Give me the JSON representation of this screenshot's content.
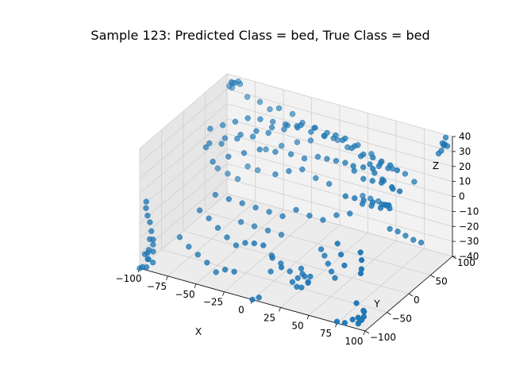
{
  "chart_data": {
    "type": "scatter",
    "projection": "3d",
    "title": "Sample 123: Predicted Class = bed, True Class = bed",
    "xlabel": "X",
    "ylabel": "Y",
    "zlabel": "Z",
    "xlim": [
      -100,
      100
    ],
    "ylim": [
      -100,
      100
    ],
    "zlim": [
      -40,
      40
    ],
    "xticks": [
      "−100",
      "−75",
      "−50",
      "−25",
      "0",
      "25",
      "50",
      "75",
      "100"
    ],
    "xtick_values": [
      -100,
      -75,
      -50,
      -25,
      0,
      25,
      50,
      75,
      100
    ],
    "yticks": [
      "−100",
      "−50",
      "0",
      "50",
      "100"
    ],
    "ytick_values": [
      -100,
      -50,
      0,
      50,
      100
    ],
    "zticks": [
      "−40",
      "−30",
      "−20",
      "−10",
      "0",
      "10",
      "20",
      "30",
      "40"
    ],
    "ztick_values": [
      -40,
      -30,
      -20,
      -10,
      0,
      10,
      20,
      30,
      40
    ],
    "grid": true,
    "color": "#1f77b4",
    "series": [
      {
        "points": [
          [
            -95,
            100,
            35
          ],
          [
            -92,
            98,
            36
          ],
          [
            -94,
            96,
            33
          ],
          [
            -90,
            100,
            37
          ],
          [
            -96,
            95,
            34
          ],
          [
            -88,
            99,
            36
          ],
          [
            -93,
            92,
            38
          ],
          [
            -80,
            95,
            30
          ],
          [
            -70,
            98,
            28
          ],
          [
            -60,
            95,
            26
          ],
          [
            -50,
            90,
            30
          ],
          [
            -40,
            95,
            27
          ],
          [
            -30,
            92,
            24
          ],
          [
            -20,
            95,
            22
          ],
          [
            -10,
            90,
            20
          ],
          [
            0,
            95,
            18
          ],
          [
            10,
            92,
            16
          ],
          [
            20,
            90,
            20
          ],
          [
            30,
            95,
            15
          ],
          [
            40,
            90,
            12
          ],
          [
            50,
            92,
            10
          ],
          [
            60,
            95,
            8
          ],
          [
            70,
            90,
            6
          ],
          [
            -95,
            -95,
            -30
          ],
          [
            -93,
            -98,
            -33
          ],
          [
            -96,
            -92,
            -35
          ],
          [
            -90,
            -95,
            -28
          ],
          [
            -94,
            -100,
            -38
          ],
          [
            -92,
            -90,
            -25
          ],
          [
            -97,
            -96,
            -31
          ],
          [
            -91,
            -93,
            -36
          ],
          [
            -95,
            -90,
            -22
          ],
          [
            -93,
            -97,
            -27
          ],
          [
            -95,
            -95,
            -5
          ],
          [
            -94,
            -92,
            -10
          ],
          [
            -96,
            -96,
            0
          ],
          [
            -92,
            -94,
            -15
          ],
          [
            -95,
            -98,
            5
          ],
          [
            -90,
            -95,
            -20
          ],
          [
            95,
            -95,
            -35
          ],
          [
            93,
            -98,
            -33
          ],
          [
            96,
            -92,
            -30
          ],
          [
            92,
            -95,
            -38
          ],
          [
            94,
            -100,
            -36
          ],
          [
            90,
            -94,
            -25
          ],
          [
            97,
            -96,
            -28
          ],
          [
            95,
            -90,
            -34
          ],
          [
            95,
            95,
            35
          ],
          [
            93,
            98,
            33
          ],
          [
            96,
            92,
            36
          ],
          [
            92,
            95,
            30
          ],
          [
            94,
            100,
            38
          ],
          [
            90,
            94,
            28
          ],
          [
            97,
            96,
            34
          ],
          [
            95,
            90,
            37
          ],
          [
            95,
            -95,
            5
          ],
          [
            93,
            -92,
            -5
          ],
          [
            96,
            -98,
            0
          ],
          [
            94,
            -95,
            10
          ],
          [
            -100,
            -100,
            -40
          ],
          [
            -98,
            -99,
            -39
          ],
          [
            85,
            -90,
            -38
          ],
          [
            80,
            -95,
            -40
          ],
          [
            75,
            -100,
            -39
          ],
          [
            -80,
            0,
            20
          ],
          [
            -70,
            10,
            22
          ],
          [
            -60,
            20,
            25
          ],
          [
            -50,
            30,
            26
          ],
          [
            -40,
            40,
            28
          ],
          [
            -30,
            50,
            30
          ],
          [
            -20,
            55,
            32
          ],
          [
            -10,
            60,
            30
          ],
          [
            0,
            65,
            28
          ],
          [
            10,
            60,
            30
          ],
          [
            20,
            55,
            32
          ],
          [
            30,
            50,
            30
          ],
          [
            40,
            45,
            28
          ],
          [
            50,
            40,
            26
          ],
          [
            60,
            35,
            28
          ],
          [
            70,
            30,
            30
          ],
          [
            80,
            25,
            32
          ],
          [
            -75,
            -5,
            25
          ],
          [
            -65,
            5,
            28
          ],
          [
            -55,
            15,
            30
          ],
          [
            -45,
            25,
            32
          ],
          [
            -35,
            35,
            34
          ],
          [
            -25,
            45,
            35
          ],
          [
            -15,
            50,
            36
          ],
          [
            -5,
            55,
            35
          ],
          [
            5,
            58,
            33
          ],
          [
            15,
            52,
            35
          ],
          [
            25,
            48,
            36
          ],
          [
            35,
            44,
            34
          ],
          [
            45,
            38,
            32
          ],
          [
            55,
            34,
            33
          ],
          [
            65,
            28,
            34
          ],
          [
            75,
            22,
            35
          ],
          [
            -70,
            -10,
            15
          ],
          [
            -60,
            0,
            18
          ],
          [
            -50,
            10,
            20
          ],
          [
            -40,
            20,
            22
          ],
          [
            -30,
            30,
            20
          ],
          [
            -20,
            40,
            18
          ],
          [
            -10,
            45,
            16
          ],
          [
            0,
            50,
            18
          ],
          [
            10,
            45,
            20
          ],
          [
            20,
            40,
            22
          ],
          [
            30,
            35,
            24
          ],
          [
            40,
            30,
            22
          ],
          [
            50,
            25,
            20
          ],
          [
            60,
            20,
            22
          ],
          [
            70,
            15,
            24
          ],
          [
            -80,
            10,
            30
          ],
          [
            -72,
            18,
            32
          ],
          [
            -64,
            26,
            34
          ],
          [
            -56,
            34,
            36
          ],
          [
            -48,
            42,
            35
          ],
          [
            -40,
            50,
            33
          ],
          [
            -32,
            58,
            31
          ],
          [
            -24,
            64,
            30
          ],
          [
            40,
            10,
            10
          ],
          [
            50,
            5,
            12
          ],
          [
            60,
            0,
            14
          ],
          [
            70,
            -5,
            16
          ],
          [
            80,
            -10,
            18
          ],
          [
            85,
            -15,
            20
          ],
          [
            90,
            -20,
            22
          ],
          [
            85,
            -5,
            15
          ],
          [
            75,
            0,
            12
          ],
          [
            65,
            5,
            10
          ],
          [
            55,
            10,
            8
          ],
          [
            45,
            15,
            30
          ],
          [
            55,
            12,
            32
          ],
          [
            65,
            8,
            34
          ],
          [
            75,
            4,
            30
          ],
          [
            85,
            0,
            28
          ],
          [
            90,
            5,
            25
          ],
          [
            80,
            15,
            22
          ],
          [
            70,
            20,
            24
          ],
          [
            60,
            25,
            26
          ],
          [
            -60,
            -30,
            0
          ],
          [
            -50,
            -25,
            -2
          ],
          [
            -40,
            -20,
            -4
          ],
          [
            -30,
            -15,
            -6
          ],
          [
            -20,
            -10,
            -8
          ],
          [
            -10,
            -5,
            -10
          ],
          [
            0,
            0,
            -5
          ],
          [
            10,
            5,
            -8
          ],
          [
            20,
            10,
            -10
          ],
          [
            30,
            15,
            -6
          ],
          [
            40,
            20,
            -4
          ],
          [
            -70,
            -40,
            -10
          ],
          [
            -60,
            -45,
            -12
          ],
          [
            -50,
            -50,
            -15
          ],
          [
            -40,
            -55,
            -18
          ],
          [
            -30,
            -60,
            -20
          ],
          [
            -20,
            -65,
            -15
          ],
          [
            -10,
            -70,
            -12
          ],
          [
            0,
            -75,
            -10
          ],
          [
            10,
            -80,
            -15
          ],
          [
            20,
            -85,
            -18
          ],
          [
            -80,
            -60,
            -25
          ],
          [
            -70,
            -65,
            -28
          ],
          [
            -60,
            -70,
            -30
          ],
          [
            -50,
            -75,
            -32
          ],
          [
            -40,
            -80,
            -35
          ],
          [
            -30,
            -85,
            -30
          ],
          [
            -20,
            -90,
            -28
          ],
          [
            20,
            -40,
            -30
          ],
          [
            25,
            -45,
            -33
          ],
          [
            30,
            -50,
            -35
          ],
          [
            22,
            -55,
            -38
          ],
          [
            28,
            -60,
            -36
          ],
          [
            25,
            -50,
            -30
          ],
          [
            30,
            -45,
            -32
          ],
          [
            20,
            -60,
            -34
          ],
          [
            27,
            -42,
            -37
          ],
          [
            24,
            -58,
            -31
          ],
          [
            30,
            -20,
            -20
          ],
          [
            35,
            -25,
            -22
          ],
          [
            40,
            -30,
            -25
          ],
          [
            45,
            -35,
            -28
          ],
          [
            50,
            -40,
            -30
          ],
          [
            -30,
            30,
            5
          ],
          [
            -20,
            35,
            8
          ],
          [
            -10,
            40,
            10
          ],
          [
            0,
            45,
            5
          ],
          [
            10,
            50,
            2
          ],
          [
            -85,
            40,
            -5
          ],
          [
            -80,
            50,
            -10
          ],
          [
            -75,
            60,
            -15
          ],
          [
            -70,
            70,
            -8
          ],
          [
            -65,
            80,
            -12
          ],
          [
            60,
            60,
            -20
          ],
          [
            65,
            65,
            -22
          ],
          [
            70,
            70,
            -25
          ],
          [
            75,
            75,
            -28
          ],
          [
            80,
            80,
            -30
          ],
          [
            60,
            -60,
            0
          ],
          [
            65,
            -65,
            -5
          ],
          [
            70,
            -70,
            -10
          ],
          [
            -50,
            60,
            10
          ],
          [
            -40,
            70,
            12
          ],
          [
            -30,
            80,
            14
          ],
          [
            -20,
            85,
            16
          ],
          [
            35,
            80,
            -10
          ],
          [
            40,
            85,
            -12
          ],
          [
            45,
            90,
            -15
          ],
          [
            30,
            75,
            -8
          ],
          [
            -10,
            -30,
            -30
          ],
          [
            0,
            -35,
            -32
          ],
          [
            10,
            -40,
            -34
          ],
          [
            -5,
            -45,
            -36
          ],
          [
            0,
            -100,
            -40
          ],
          [
            5,
            -98,
            -38
          ],
          [
            -45,
            -10,
            -20
          ],
          [
            -35,
            -5,
            -22
          ],
          [
            -25,
            0,
            -24
          ],
          [
            -15,
            5,
            -26
          ]
        ]
      }
    ]
  }
}
